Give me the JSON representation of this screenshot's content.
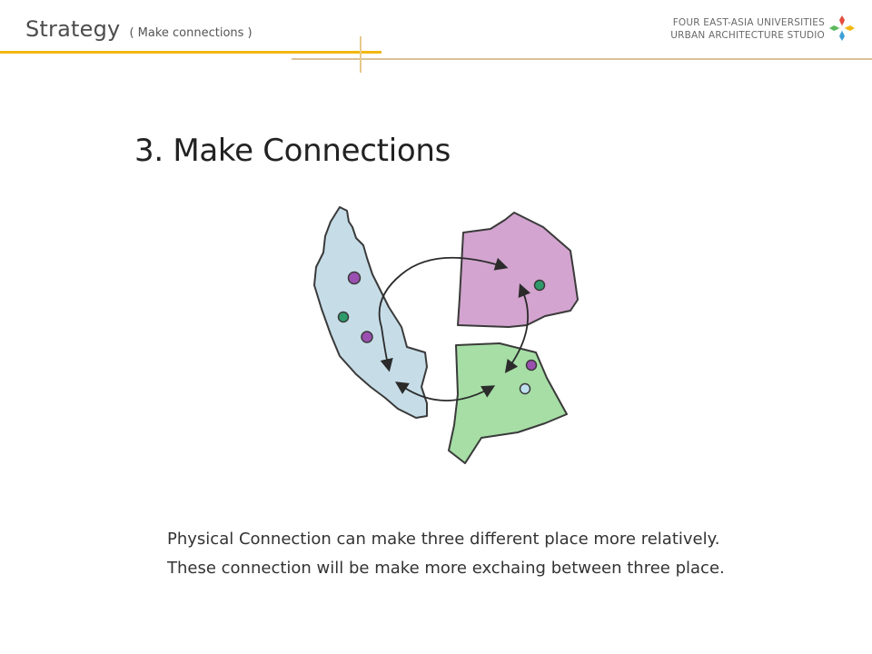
{
  "header": {
    "title": "Strategy",
    "subtitle": "( Make connections )",
    "studio_line1": "FOUR EAST-ASIA UNIVERSITIES",
    "studio_line2": "URBAN ARCHITECTURE STUDIO",
    "logo_icon": "four-petal-logo-icon"
  },
  "main": {
    "heading": "3. Make Connections",
    "caption_line1": "Physical Connection can make three different place more relatively.",
    "caption_line2": "These connection will be make more exchaing between three place."
  },
  "diagram": {
    "regions": [
      {
        "name": "blue-region",
        "color": "#c6dde8"
      },
      {
        "name": "pink-region",
        "color": "#d3a4cf"
      },
      {
        "name": "green-region",
        "color": "#a6dea5"
      }
    ],
    "dot_colors": {
      "purple": "#9b4fb0",
      "green": "#2e9a6a",
      "light-blue": "#bfe1ef"
    },
    "outline_color": "#3a3a3a",
    "arrow_color": "#2b2b2b"
  },
  "colors": {
    "gold_rule": "#f2b811",
    "tan_rule": "#d9c29a",
    "header_text": "#4d4d4d"
  }
}
